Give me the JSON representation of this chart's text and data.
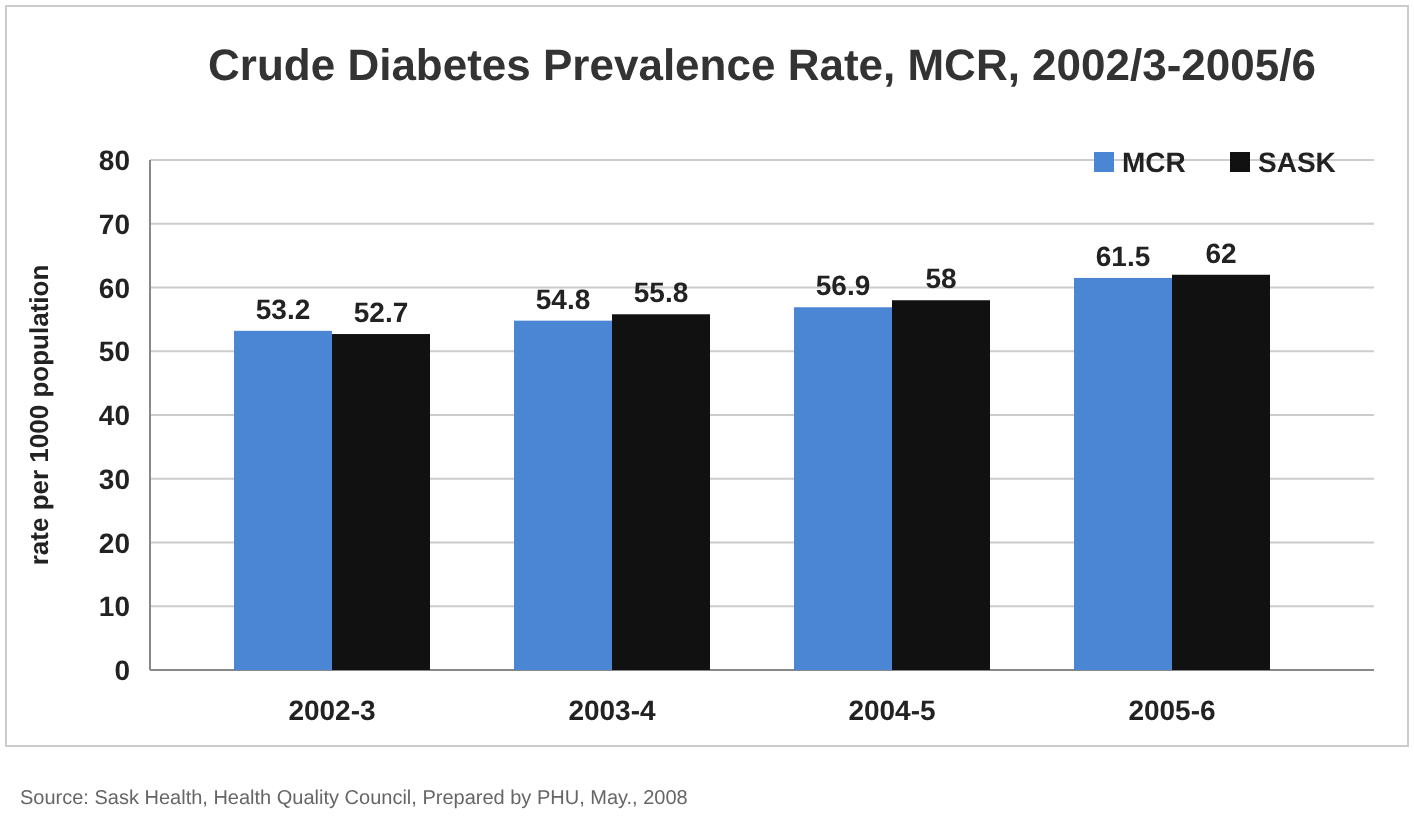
{
  "chart_data": {
    "type": "bar",
    "title": "Crude Diabetes Prevalence Rate, MCR, 2002/3-2005/6",
    "ylabel": "rate per 1000 population",
    "categories": [
      "2002-3",
      "2003-4",
      "2004-5",
      "2005-6"
    ],
    "series": [
      {
        "name": "MCR",
        "color": "#4a86d4",
        "values": [
          53.2,
          54.8,
          56.9,
          61.5
        ]
      },
      {
        "name": "SASK",
        "color": "#111111",
        "values": [
          52.7,
          55.8,
          58,
          62
        ]
      }
    ],
    "ylim": [
      0,
      80
    ],
    "yticks": [
      0,
      10,
      20,
      30,
      40,
      50,
      60,
      70,
      80
    ],
    "grid": "y",
    "legend": "top right",
    "data_labels": true,
    "annotations": [
      "Source: Sask Health, Health Quality Council, Prepared by PHU, May., 2008"
    ]
  }
}
